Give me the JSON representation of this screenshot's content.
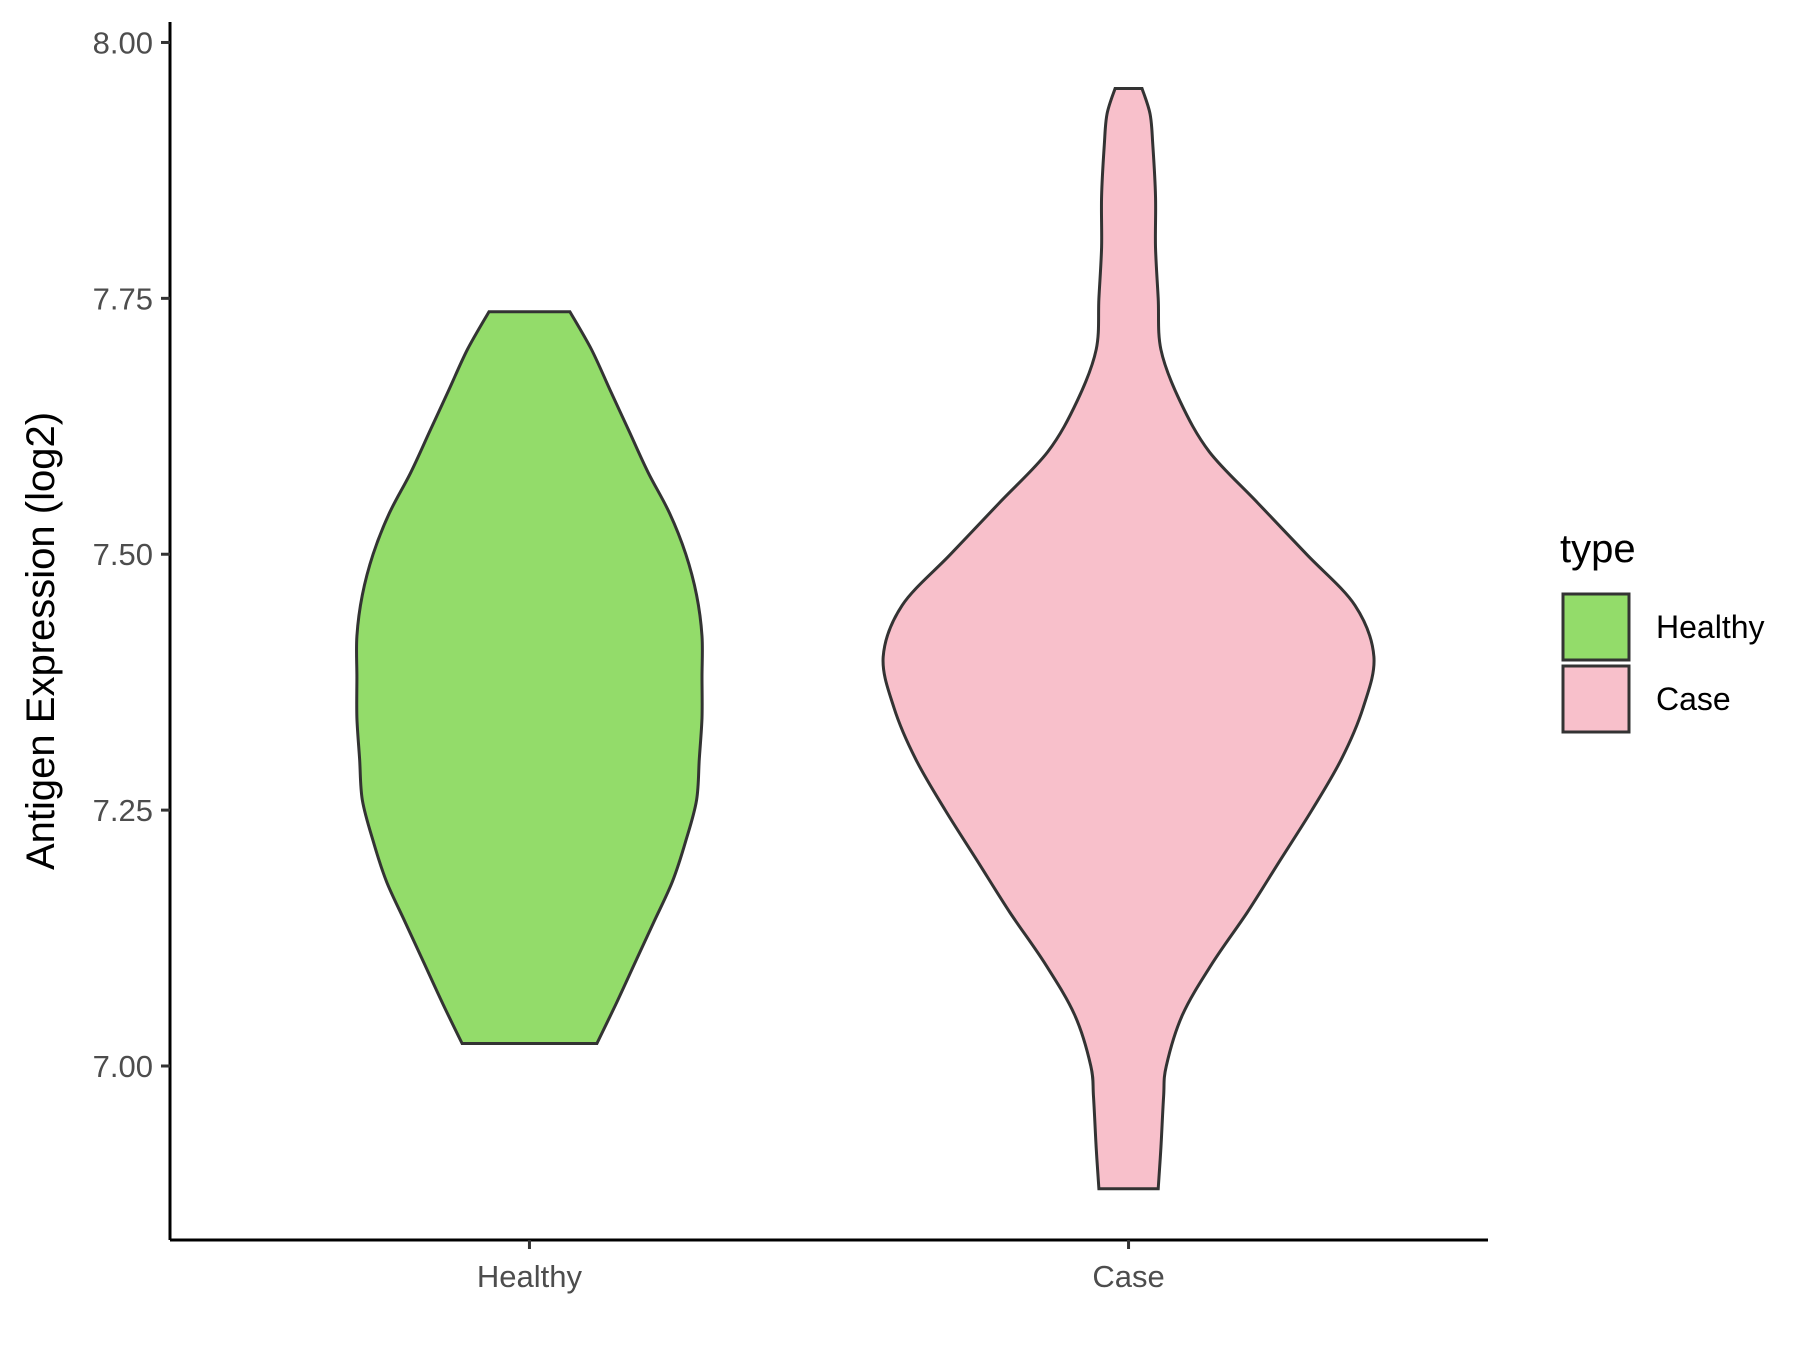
{
  "chart_data": {
    "type": "violin",
    "title": "",
    "xlabel": "",
    "ylabel": "Antigen Expression (log2)",
    "ylim": [
      6.83,
      8.02
    ],
    "yticks": [
      "7.00",
      "7.25",
      "7.50",
      "7.75",
      "8.00"
    ],
    "categories": [
      "Healthy",
      "Case"
    ],
    "legend": {
      "title": "type",
      "position": "right",
      "entries": [
        {
          "label": "Healthy",
          "color": "#93dc6a"
        },
        {
          "label": "Case",
          "color": "#f8c0cb"
        }
      ]
    },
    "grid": false,
    "series": [
      {
        "name": "Healthy",
        "color": "#93dc6a",
        "min": 7.022,
        "max": 7.737,
        "density": [
          [
            7.022,
            0.25
          ],
          [
            7.06,
            0.32
          ],
          [
            7.1,
            0.39
          ],
          [
            7.14,
            0.46
          ],
          [
            7.18,
            0.53
          ],
          [
            7.22,
            0.58
          ],
          [
            7.26,
            0.62
          ],
          [
            7.3,
            0.63
          ],
          [
            7.34,
            0.64
          ],
          [
            7.38,
            0.64
          ],
          [
            7.42,
            0.64
          ],
          [
            7.46,
            0.62
          ],
          [
            7.5,
            0.58
          ],
          [
            7.54,
            0.52
          ],
          [
            7.58,
            0.44
          ],
          [
            7.62,
            0.37
          ],
          [
            7.66,
            0.3
          ],
          [
            7.7,
            0.23
          ],
          [
            7.737,
            0.15
          ]
        ]
      },
      {
        "name": "Case",
        "color": "#f8c0cb",
        "min": 6.88,
        "max": 7.955,
        "density": [
          [
            6.88,
            0.11
          ],
          [
            6.92,
            0.12
          ],
          [
            6.97,
            0.13
          ],
          [
            7.0,
            0.14
          ],
          [
            7.05,
            0.2
          ],
          [
            7.1,
            0.31
          ],
          [
            7.15,
            0.44
          ],
          [
            7.2,
            0.56
          ],
          [
            7.25,
            0.68
          ],
          [
            7.3,
            0.79
          ],
          [
            7.35,
            0.87
          ],
          [
            7.4,
            0.91
          ],
          [
            7.45,
            0.84
          ],
          [
            7.5,
            0.66
          ],
          [
            7.55,
            0.48
          ],
          [
            7.6,
            0.3
          ],
          [
            7.65,
            0.19
          ],
          [
            7.7,
            0.12
          ],
          [
            7.75,
            0.11
          ],
          [
            7.8,
            0.1
          ],
          [
            7.85,
            0.1
          ],
          [
            7.9,
            0.09
          ],
          [
            7.93,
            0.08
          ],
          [
            7.955,
            0.05
          ]
        ]
      }
    ]
  }
}
